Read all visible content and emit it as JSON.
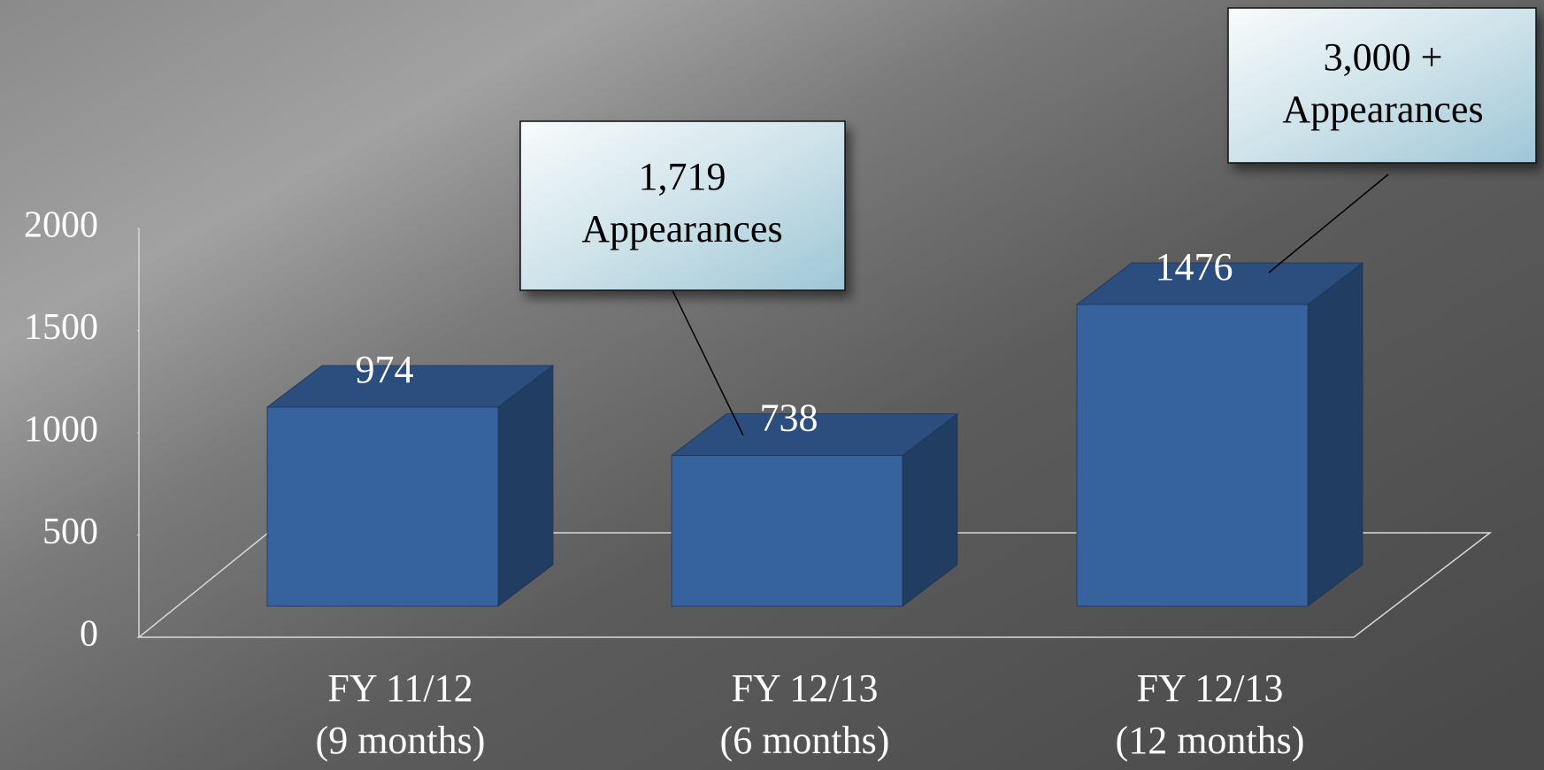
{
  "chart_data": {
    "type": "bar3d",
    "categories": [
      [
        "FY 11/12",
        "(9 months)"
      ],
      [
        "FY 12/13",
        "(6 months)"
      ],
      [
        "FY 12/13",
        "(12 months)"
      ]
    ],
    "values": [
      974,
      738,
      1476
    ],
    "color": "#36629e",
    "ylim": [
      0,
      2000
    ],
    "yticks": [
      0,
      500,
      1000,
      1500,
      2000
    ],
    "annotations": [
      {
        "lines": [
          "1,719",
          "Appearances"
        ]
      },
      {
        "lines": [
          "3,000 +",
          "Appearances"
        ]
      }
    ]
  }
}
